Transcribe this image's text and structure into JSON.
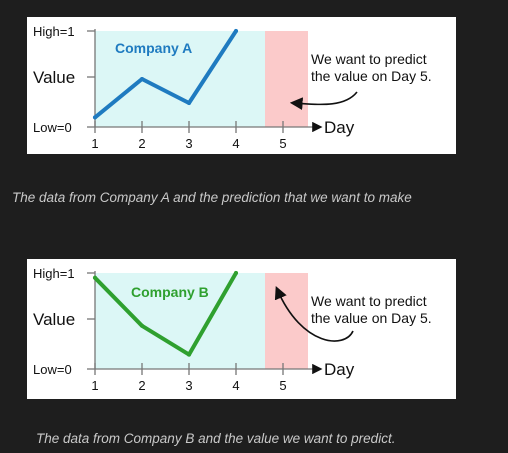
{
  "captions": {
    "a": "The data from Company A and the prediction that we want to make",
    "b": "The data from Company B and the value we want to predict."
  },
  "axis": {
    "y_high": "High=1",
    "y_mid": "Value",
    "y_low": "Low=0",
    "x_label": "Day",
    "x_ticks": [
      "1",
      "2",
      "3",
      "4",
      "5"
    ]
  },
  "note": {
    "line1": "We want to predict",
    "line2": "the value on Day 5."
  },
  "colors": {
    "observed_bg": "#dcf7f6",
    "predict_bg": "#fbcaca",
    "series_a": "#1f7bc0",
    "series_b": "#2fa02f"
  },
  "chart_data": [
    {
      "type": "line",
      "title": "Company A",
      "xlabel": "Day",
      "ylabel": "Value",
      "x": [
        1,
        2,
        3,
        4,
        5
      ],
      "series": [
        {
          "name": "Company A",
          "values": [
            0.1,
            0.5,
            0.25,
            1.0,
            null
          ]
        }
      ],
      "ylim": [
        0,
        1
      ]
    },
    {
      "type": "line",
      "title": "Company B",
      "xlabel": "Day",
      "ylabel": "Value",
      "x": [
        1,
        2,
        3,
        4,
        5
      ],
      "series": [
        {
          "name": "Company B",
          "values": [
            0.95,
            0.45,
            0.15,
            1.0,
            null
          ]
        }
      ],
      "ylim": [
        0,
        1
      ]
    }
  ]
}
